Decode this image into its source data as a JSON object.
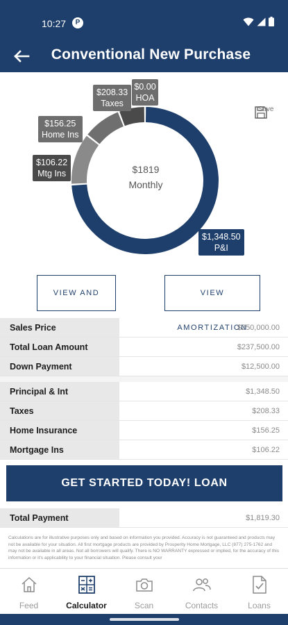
{
  "status": {
    "time": "10:27",
    "badge": "P"
  },
  "header": {
    "title": "Conventional New Purchase"
  },
  "summary": {
    "amount": "$1819",
    "label": "Monthly"
  },
  "save": {
    "label": "Save"
  },
  "chart_data": {
    "type": "pie",
    "center_text": "$1819 Monthly",
    "slices": [
      {
        "label": "P&I",
        "amount": "$1,348.50",
        "value": 1348.5,
        "color": "#1e3f6b"
      },
      {
        "label": "HOA",
        "amount": "$0.00",
        "value": 0.0,
        "color": "#7a7a7a"
      },
      {
        "label": "Taxes",
        "amount": "$208.33",
        "value": 208.33,
        "color": "#8a8a8a"
      },
      {
        "label": "Home Ins",
        "amount": "$156.25",
        "value": 156.25,
        "color": "#6f6f6f"
      },
      {
        "label": "Mtg Ins",
        "amount": "$106.22",
        "value": 106.22,
        "color": "#4a4a4a"
      }
    ]
  },
  "buttons": {
    "share": "VIEW AND SHARE",
    "amortization": "VIEW AMORTIZATION",
    "cta": "GET STARTED TODAY! LOAN"
  },
  "loan_rows": [
    {
      "label": "Sales Price",
      "value": "$250,000.00"
    },
    {
      "label": "Total Loan Amount",
      "value": "$237,500.00"
    },
    {
      "label": "Down Payment",
      "value": "$12,500.00"
    }
  ],
  "payment_rows": [
    {
      "label": "Principal & Int",
      "value": "$1,348.50"
    },
    {
      "label": "Taxes",
      "value": "$208.33"
    },
    {
      "label": "Home Insurance",
      "value": "$156.25"
    },
    {
      "label": "Mortgage Ins",
      "value": "$106.22"
    }
  ],
  "total_row": {
    "label": "Total Payment",
    "value": "$1,819.30"
  },
  "disclaimer": "Calculations are for illustrative purposes only and based on information you provided. Accuracy is not guaranteed and products may not be available for your situation. All first mortgage products are provided by Prosperity Home Mortgage, LLC (877) 275-1762 and may not be available in all areas. Not all borrowers will qualify. There is NO WARRANTY expressed or implied, for the accuracy of this information or it's applicability to your financial situation. Please consult your",
  "nav": [
    {
      "label": "Feed",
      "icon": "home-icon"
    },
    {
      "label": "Calculator",
      "icon": "calculator-icon"
    },
    {
      "label": "Scan",
      "icon": "camera-icon"
    },
    {
      "label": "Contacts",
      "icon": "contacts-icon"
    },
    {
      "label": "Loans",
      "icon": "document-check-icon"
    }
  ],
  "colors": {
    "primary": "#1e3f6b",
    "label_bg": "#e8e8e8"
  }
}
